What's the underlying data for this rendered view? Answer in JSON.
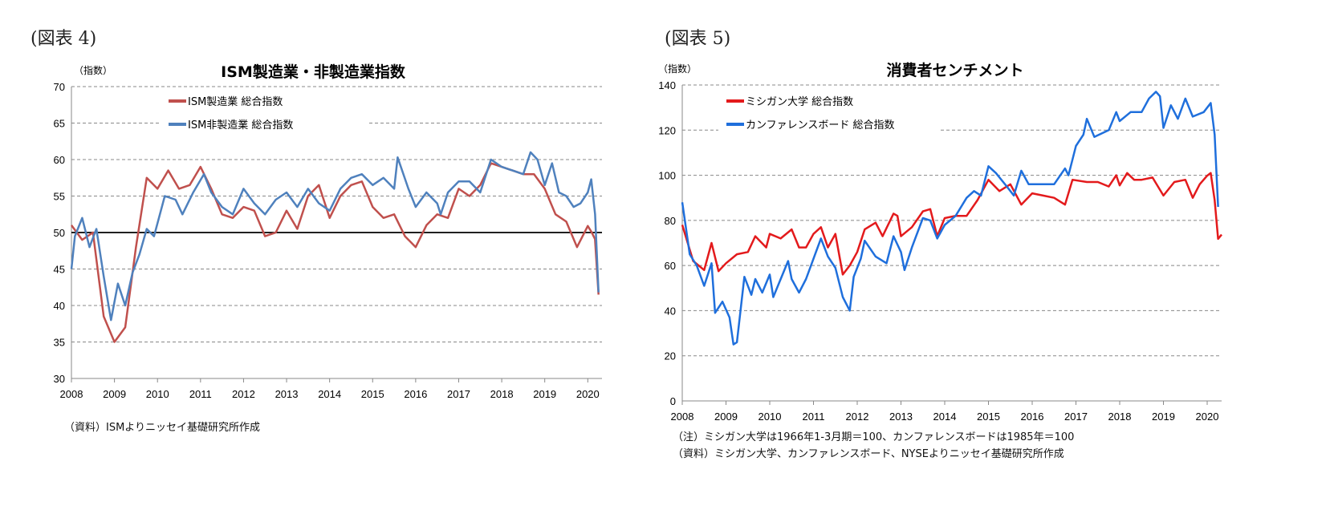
{
  "figures": [
    {
      "label": "(図表 4)",
      "notes": [
        "（資料）ISMよりニッセイ基礎研究所作成"
      ]
    },
    {
      "label": "(図表 5)",
      "notes": [
        "（注）ミシガン大学は1966年1-3月期＝100、カンファレンスボードは1985年＝100",
        "（資料）ミシガン大学、カンファレンスボード、NYSEよりニッセイ基礎研究所作成"
      ]
    }
  ],
  "chart_data": [
    {
      "type": "line",
      "title": "ISM製造業・非製造業指数",
      "ylabel": "（指数）",
      "xlim": [
        2008,
        2020.33
      ],
      "ylim": [
        30,
        70
      ],
      "yticks": [
        30,
        35,
        40,
        45,
        50,
        55,
        60,
        65,
        70
      ],
      "xticks": [
        2008,
        2009,
        2010,
        2011,
        2012,
        2013,
        2014,
        2015,
        2016,
        2017,
        2018,
        2019,
        2020
      ],
      "grid": true,
      "reference_line": 50,
      "legend": "top-left",
      "series": [
        {
          "name": "ISM製造業 総合指数",
          "color": "#c0504d",
          "x": [
            2008.0,
            2008.25,
            2008.5,
            2008.75,
            2009.0,
            2009.25,
            2009.5,
            2009.75,
            2010.0,
            2010.25,
            2010.5,
            2010.75,
            2011.0,
            2011.25,
            2011.5,
            2011.75,
            2012.0,
            2012.25,
            2012.5,
            2012.75,
            2013.0,
            2013.25,
            2013.5,
            2013.75,
            2014.0,
            2014.25,
            2014.5,
            2014.75,
            2015.0,
            2015.25,
            2015.5,
            2015.75,
            2016.0,
            2016.25,
            2016.5,
            2016.75,
            2017.0,
            2017.25,
            2017.5,
            2017.75,
            2018.0,
            2018.25,
            2018.5,
            2018.75,
            2019.0,
            2019.25,
            2019.5,
            2019.75,
            2020.0,
            2020.083,
            2020.167,
            2020.25
          ],
          "y": [
            51,
            49,
            50,
            38.5,
            35,
            37,
            48,
            57.5,
            56,
            58.5,
            56,
            56.5,
            59,
            56,
            52.5,
            52,
            53.5,
            53,
            49.5,
            50,
            53,
            50.5,
            55,
            56.5,
            52,
            55,
            56.5,
            57,
            53.5,
            52,
            52.5,
            49.5,
            48,
            51,
            52.5,
            52,
            56,
            55,
            56.5,
            59.5,
            59,
            58.5,
            58,
            58,
            56,
            52.5,
            51.5,
            48,
            50.9,
            50.1,
            49.1,
            41.5
          ]
        },
        {
          "name": "ISM非製造業 総合指数",
          "color": "#4f81bd",
          "x": [
            2008.0,
            2008.08,
            2008.25,
            2008.42,
            2008.58,
            2008.75,
            2008.92,
            2009.08,
            2009.25,
            2009.42,
            2009.58,
            2009.75,
            2009.92,
            2010.17,
            2010.42,
            2010.58,
            2010.83,
            2011.08,
            2011.25,
            2011.5,
            2011.75,
            2012.0,
            2012.25,
            2012.5,
            2012.75,
            2013.0,
            2013.25,
            2013.5,
            2013.75,
            2014.0,
            2014.25,
            2014.5,
            2014.75,
            2015.0,
            2015.25,
            2015.5,
            2015.58,
            2015.83,
            2016.0,
            2016.25,
            2016.5,
            2016.58,
            2016.75,
            2017.0,
            2017.25,
            2017.5,
            2017.75,
            2018.0,
            2018.25,
            2018.5,
            2018.67,
            2018.83,
            2019.0,
            2019.17,
            2019.33,
            2019.5,
            2019.67,
            2019.83,
            2020.0,
            2020.08,
            2020.17,
            2020.25
          ],
          "y": [
            45,
            49.5,
            52,
            48,
            50.5,
            44,
            38,
            43,
            40,
            44.5,
            47,
            50.5,
            49.5,
            55,
            54.5,
            52.5,
            55.5,
            58,
            55.5,
            53.5,
            52.5,
            56,
            54,
            52.5,
            54.5,
            55.5,
            53.5,
            56,
            54,
            53,
            56,
            57.5,
            58,
            56.5,
            57.5,
            56,
            60.3,
            56,
            53.5,
            55.5,
            54,
            52.5,
            55.5,
            57,
            57,
            55.5,
            60,
            59,
            58.5,
            58,
            61,
            60,
            56.5,
            59.5,
            55.5,
            55,
            53.5,
            54,
            55.5,
            57.3,
            52.5,
            41.8
          ]
        }
      ]
    },
    {
      "type": "line",
      "title": "消費者センチメント",
      "ylabel": "（指数）",
      "xlim": [
        2008,
        2020.33
      ],
      "ylim": [
        0,
        140
      ],
      "yticks": [
        0,
        20,
        40,
        60,
        80,
        100,
        120,
        140
      ],
      "xticks": [
        2008,
        2009,
        2010,
        2011,
        2012,
        2013,
        2014,
        2015,
        2016,
        2017,
        2018,
        2019,
        2020
      ],
      "grid": true,
      "legend": "top-left",
      "series": [
        {
          "name": "ミシガン大学 総合指数",
          "color": "#e31a1c",
          "x": [
            2008.0,
            2008.25,
            2008.5,
            2008.67,
            2008.83,
            2009.0,
            2009.25,
            2009.5,
            2009.67,
            2009.92,
            2010.0,
            2010.25,
            2010.5,
            2010.67,
            2010.83,
            2011.0,
            2011.17,
            2011.33,
            2011.5,
            2011.67,
            2011.83,
            2012.0,
            2012.17,
            2012.42,
            2012.58,
            2012.83,
            2012.92,
            2013.0,
            2013.25,
            2013.5,
            2013.67,
            2013.83,
            2014.0,
            2014.25,
            2014.5,
            2014.75,
            2015.0,
            2015.25,
            2015.5,
            2015.75,
            2016.0,
            2016.25,
            2016.5,
            2016.75,
            2016.92,
            2017.25,
            2017.5,
            2017.75,
            2017.92,
            2018.0,
            2018.17,
            2018.33,
            2018.5,
            2018.75,
            2019.0,
            2019.25,
            2019.5,
            2019.67,
            2019.83,
            2020.0,
            2020.08,
            2020.17,
            2020.25,
            2020.33
          ],
          "y": [
            78,
            62,
            58,
            70,
            57.5,
            61,
            65,
            66,
            73,
            68,
            74,
            72,
            76,
            68,
            68,
            74,
            77,
            68,
            74,
            56,
            60,
            66,
            76,
            79,
            73,
            83,
            82,
            73,
            77,
            84,
            85,
            73,
            81,
            82,
            82,
            89,
            98,
            93,
            96,
            87,
            92,
            91,
            90,
            87,
            98,
            97,
            97,
            95,
            100,
            95.5,
            101,
            98,
            98,
            99,
            91,
            97,
            98,
            90,
            96,
            99.8,
            101,
            89,
            71.8,
            73.7
          ]
        },
        {
          "name": "カンファレンスボード  総合指数",
          "color": "#1f6fdc",
          "x": [
            2008.0,
            2008.17,
            2008.33,
            2008.5,
            2008.67,
            2008.75,
            2008.92,
            2009.08,
            2009.17,
            2009.25,
            2009.42,
            2009.58,
            2009.67,
            2009.83,
            2010.0,
            2010.08,
            2010.42,
            2010.5,
            2010.67,
            2010.83,
            2011.0,
            2011.17,
            2011.33,
            2011.5,
            2011.67,
            2011.83,
            2011.92,
            2012.08,
            2012.17,
            2012.42,
            2012.67,
            2012.83,
            2013.0,
            2013.08,
            2013.25,
            2013.5,
            2013.67,
            2013.83,
            2014.0,
            2014.25,
            2014.5,
            2014.67,
            2014.83,
            2015.0,
            2015.17,
            2015.42,
            2015.58,
            2015.75,
            2015.92,
            2016.17,
            2016.5,
            2016.75,
            2016.83,
            2017.0,
            2017.17,
            2017.25,
            2017.42,
            2017.75,
            2017.92,
            2018.0,
            2018.25,
            2018.5,
            2018.67,
            2018.83,
            2018.92,
            2019.0,
            2019.17,
            2019.33,
            2019.5,
            2019.67,
            2019.92,
            2020.08,
            2020.17,
            2020.25
          ],
          "y": [
            88,
            65,
            60,
            51,
            61,
            39,
            44,
            37,
            25,
            26,
            55,
            47,
            54,
            48,
            56,
            46,
            62,
            54,
            48,
            54,
            63,
            72,
            64,
            59,
            46,
            40,
            55,
            63,
            71,
            64,
            61,
            73,
            66,
            58,
            68,
            81,
            80,
            72,
            78,
            82,
            90,
            93,
            91,
            104,
            101,
            95,
            91,
            102,
            96,
            96,
            96,
            103,
            100,
            113,
            118,
            125,
            117,
            120,
            128,
            124,
            128,
            128,
            134,
            137,
            135,
            121,
            131,
            125,
            134,
            126,
            128,
            132,
            118,
            86
          ]
        }
      ]
    }
  ]
}
